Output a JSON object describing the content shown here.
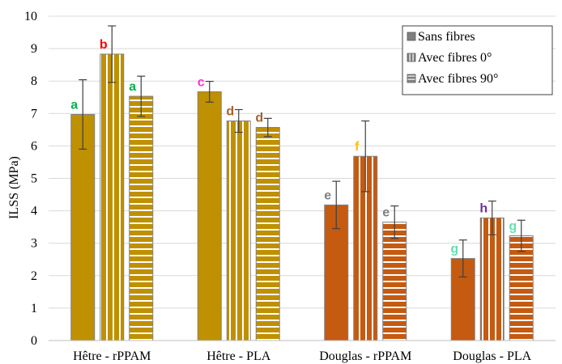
{
  "chart_data": {
    "type": "bar",
    "categories": [
      "Hêtre - rPPAM",
      "Hêtre - PLA",
      "Douglas - rPPAM",
      "Douglas - PLA"
    ],
    "ylabel": "ILSS (MPa)",
    "ylim": [
      0,
      10
    ],
    "yticks": [
      0,
      1,
      2,
      3,
      4,
      5,
      6,
      7,
      8,
      9,
      10
    ],
    "legend_position": "top-right",
    "grid": "horizontal",
    "series": [
      {
        "name": "Sans fibres",
        "pattern": "solid",
        "values": [
          6.97,
          7.67,
          4.18,
          2.53
        ],
        "errors": [
          1.07,
          0.32,
          0.73,
          0.57
        ],
        "labels": [
          "a",
          "c",
          "e",
          "g"
        ]
      },
      {
        "name": "Avec fibres 0°",
        "pattern": "vertical-stripes",
        "values": [
          8.83,
          6.77,
          5.68,
          3.78
        ],
        "errors": [
          0.87,
          0.35,
          1.09,
          0.52
        ],
        "labels": [
          "b",
          "d",
          "f",
          "h"
        ]
      },
      {
        "name": "Avec fibres 90°",
        "pattern": "horizontal-stripes",
        "values": [
          7.53,
          6.57,
          3.65,
          3.23
        ],
        "errors": [
          0.62,
          0.28,
          0.5,
          0.48
        ],
        "labels": [
          "a",
          "d",
          "e",
          "g"
        ]
      }
    ],
    "group_colors": [
      "#bf9000",
      "#bf9000",
      "#c55a11",
      "#c55a11"
    ],
    "label_colors": [
      [
        "#00b050",
        "#ff0000",
        "#00b050"
      ],
      [
        "#ff33cc",
        "#a5622e",
        "#a5622e"
      ],
      [
        "#808080",
        "#ffc000",
        "#808080"
      ],
      [
        "#66e0b0",
        "#7030a0",
        "#66e0b0"
      ]
    ]
  }
}
